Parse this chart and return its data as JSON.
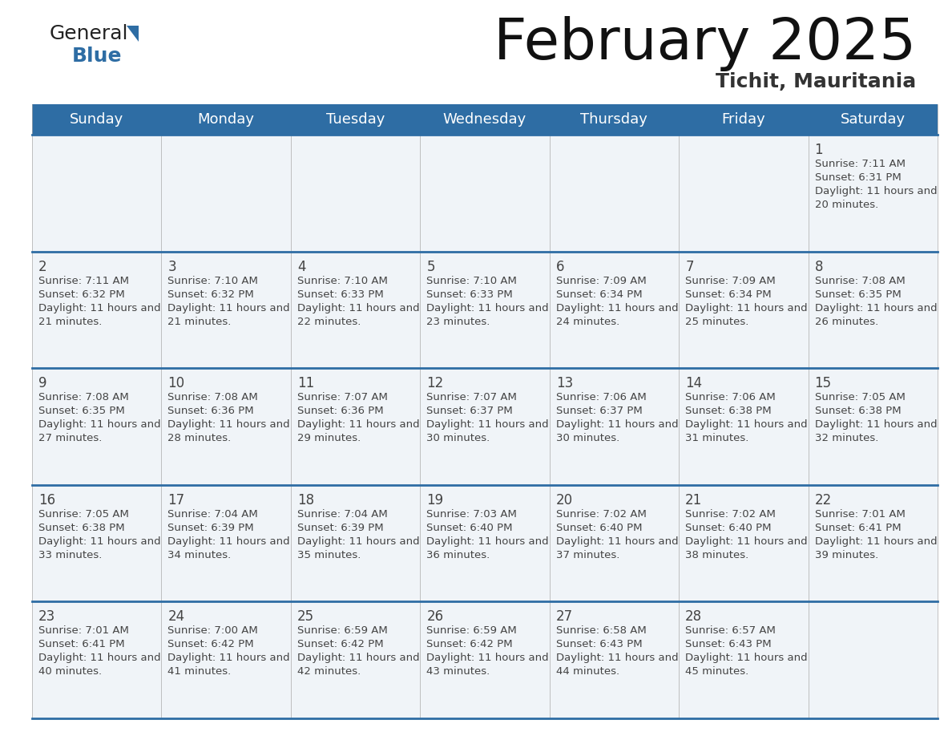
{
  "title": "February 2025",
  "subtitle": "Tichit, Mauritania",
  "header_color": "#2e6da4",
  "header_text_color": "#ffffff",
  "day_names": [
    "Sunday",
    "Monday",
    "Tuesday",
    "Wednesday",
    "Thursday",
    "Friday",
    "Saturday"
  ],
  "bg_color": "#ffffff",
  "cell_bg": "#f8f8f8",
  "border_color": "#2e6da4",
  "text_color": "#444444",
  "day_num_color": "#2e6da4",
  "logo_general_color": "#222222",
  "logo_blue_color": "#2e6da4",
  "logo_triangle_color": "#2e6da4",
  "title_color": "#111111",
  "subtitle_color": "#333333",
  "days": [
    {
      "day": 1,
      "col": 6,
      "row": 0,
      "sunrise": "7:11 AM",
      "sunset": "6:31 PM",
      "daylight": "11 hours and 20 minutes."
    },
    {
      "day": 2,
      "col": 0,
      "row": 1,
      "sunrise": "7:11 AM",
      "sunset": "6:32 PM",
      "daylight": "11 hours and 21 minutes."
    },
    {
      "day": 3,
      "col": 1,
      "row": 1,
      "sunrise": "7:10 AM",
      "sunset": "6:32 PM",
      "daylight": "11 hours and 21 minutes."
    },
    {
      "day": 4,
      "col": 2,
      "row": 1,
      "sunrise": "7:10 AM",
      "sunset": "6:33 PM",
      "daylight": "11 hours and 22 minutes."
    },
    {
      "day": 5,
      "col": 3,
      "row": 1,
      "sunrise": "7:10 AM",
      "sunset": "6:33 PM",
      "daylight": "11 hours and 23 minutes."
    },
    {
      "day": 6,
      "col": 4,
      "row": 1,
      "sunrise": "7:09 AM",
      "sunset": "6:34 PM",
      "daylight": "11 hours and 24 minutes."
    },
    {
      "day": 7,
      "col": 5,
      "row": 1,
      "sunrise": "7:09 AM",
      "sunset": "6:34 PM",
      "daylight": "11 hours and 25 minutes."
    },
    {
      "day": 8,
      "col": 6,
      "row": 1,
      "sunrise": "7:08 AM",
      "sunset": "6:35 PM",
      "daylight": "11 hours and 26 minutes."
    },
    {
      "day": 9,
      "col": 0,
      "row": 2,
      "sunrise": "7:08 AM",
      "sunset": "6:35 PM",
      "daylight": "11 hours and 27 minutes."
    },
    {
      "day": 10,
      "col": 1,
      "row": 2,
      "sunrise": "7:08 AM",
      "sunset": "6:36 PM",
      "daylight": "11 hours and 28 minutes."
    },
    {
      "day": 11,
      "col": 2,
      "row": 2,
      "sunrise": "7:07 AM",
      "sunset": "6:36 PM",
      "daylight": "11 hours and 29 minutes."
    },
    {
      "day": 12,
      "col": 3,
      "row": 2,
      "sunrise": "7:07 AM",
      "sunset": "6:37 PM",
      "daylight": "11 hours and 30 minutes."
    },
    {
      "day": 13,
      "col": 4,
      "row": 2,
      "sunrise": "7:06 AM",
      "sunset": "6:37 PM",
      "daylight": "11 hours and 30 minutes."
    },
    {
      "day": 14,
      "col": 5,
      "row": 2,
      "sunrise": "7:06 AM",
      "sunset": "6:38 PM",
      "daylight": "11 hours and 31 minutes."
    },
    {
      "day": 15,
      "col": 6,
      "row": 2,
      "sunrise": "7:05 AM",
      "sunset": "6:38 PM",
      "daylight": "11 hours and 32 minutes."
    },
    {
      "day": 16,
      "col": 0,
      "row": 3,
      "sunrise": "7:05 AM",
      "sunset": "6:38 PM",
      "daylight": "11 hours and 33 minutes."
    },
    {
      "day": 17,
      "col": 1,
      "row": 3,
      "sunrise": "7:04 AM",
      "sunset": "6:39 PM",
      "daylight": "11 hours and 34 minutes."
    },
    {
      "day": 18,
      "col": 2,
      "row": 3,
      "sunrise": "7:04 AM",
      "sunset": "6:39 PM",
      "daylight": "11 hours and 35 minutes."
    },
    {
      "day": 19,
      "col": 3,
      "row": 3,
      "sunrise": "7:03 AM",
      "sunset": "6:40 PM",
      "daylight": "11 hours and 36 minutes."
    },
    {
      "day": 20,
      "col": 4,
      "row": 3,
      "sunrise": "7:02 AM",
      "sunset": "6:40 PM",
      "daylight": "11 hours and 37 minutes."
    },
    {
      "day": 21,
      "col": 5,
      "row": 3,
      "sunrise": "7:02 AM",
      "sunset": "6:40 PM",
      "daylight": "11 hours and 38 minutes."
    },
    {
      "day": 22,
      "col": 6,
      "row": 3,
      "sunrise": "7:01 AM",
      "sunset": "6:41 PM",
      "daylight": "11 hours and 39 minutes."
    },
    {
      "day": 23,
      "col": 0,
      "row": 4,
      "sunrise": "7:01 AM",
      "sunset": "6:41 PM",
      "daylight": "11 hours and 40 minutes."
    },
    {
      "day": 24,
      "col": 1,
      "row": 4,
      "sunrise": "7:00 AM",
      "sunset": "6:42 PM",
      "daylight": "11 hours and 41 minutes."
    },
    {
      "day": 25,
      "col": 2,
      "row": 4,
      "sunrise": "6:59 AM",
      "sunset": "6:42 PM",
      "daylight": "11 hours and 42 minutes."
    },
    {
      "day": 26,
      "col": 3,
      "row": 4,
      "sunrise": "6:59 AM",
      "sunset": "6:42 PM",
      "daylight": "11 hours and 43 minutes."
    },
    {
      "day": 27,
      "col": 4,
      "row": 4,
      "sunrise": "6:58 AM",
      "sunset": "6:43 PM",
      "daylight": "11 hours and 44 minutes."
    },
    {
      "day": 28,
      "col": 5,
      "row": 4,
      "sunrise": "6:57 AM",
      "sunset": "6:43 PM",
      "daylight": "11 hours and 45 minutes."
    }
  ]
}
